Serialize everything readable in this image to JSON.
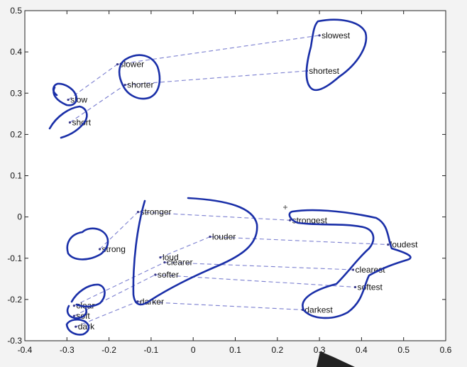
{
  "chart_data": {
    "type": "scatter",
    "title": "",
    "xlabel": "",
    "ylabel": "",
    "xlim": [
      -0.4,
      0.6
    ],
    "ylim": [
      -0.3,
      0.5
    ],
    "grid": false,
    "x_ticks": [
      -0.4,
      -0.3,
      -0.2,
      -0.1,
      0,
      0.1,
      0.2,
      0.3,
      0.4,
      0.5,
      0.6
    ],
    "x_tick_labels": [
      "-0.4",
      "-0.3",
      "-0.2",
      "-0.1",
      "0",
      "0.1",
      "0.2",
      "0.3",
      "0.4",
      "0.5",
      "0.6"
    ],
    "y_ticks": [
      -0.3,
      -0.2,
      -0.1,
      0,
      0.1,
      0.2,
      0.3,
      0.4,
      0.5
    ],
    "y_tick_labels": [
      "-0.3",
      "-0.2",
      "-0.1",
      "0",
      "0.1",
      "0.2",
      "0.3",
      "0.4",
      "0.5"
    ],
    "points": [
      {
        "label": "slow",
        "x": -0.297,
        "y": 0.284
      },
      {
        "label": "short",
        "x": -0.293,
        "y": 0.229
      },
      {
        "label": "slower",
        "x": -0.18,
        "y": 0.37
      },
      {
        "label": "shorter",
        "x": -0.162,
        "y": 0.32
      },
      {
        "label": "slowest",
        "x": 0.3,
        "y": 0.44
      },
      {
        "label": "shortest",
        "x": 0.27,
        "y": 0.354
      },
      {
        "label": "strong",
        "x": -0.222,
        "y": -0.078
      },
      {
        "label": "stronger",
        "x": -0.131,
        "y": 0.012
      },
      {
        "label": "strongest",
        "x": 0.23,
        "y": -0.008
      },
      {
        "label": "louder",
        "x": 0.04,
        "y": -0.048
      },
      {
        "label": "loudest",
        "x": 0.463,
        "y": -0.067
      },
      {
        "label": "loud",
        "x": -0.078,
        "y": -0.098
      },
      {
        "label": "clearer",
        "x": -0.068,
        "y": -0.11
      },
      {
        "label": "clearest",
        "x": 0.38,
        "y": -0.128
      },
      {
        "label": "softer",
        "x": -0.09,
        "y": -0.14
      },
      {
        "label": "softest",
        "x": 0.385,
        "y": -0.17
      },
      {
        "label": "clear",
        "x": -0.283,
        "y": -0.215
      },
      {
        "label": "darker",
        "x": -0.132,
        "y": -0.205
      },
      {
        "label": "darkest",
        "x": 0.26,
        "y": -0.225
      },
      {
        "label": "soft",
        "x": -0.283,
        "y": -0.24
      },
      {
        "label": "dark",
        "x": -0.279,
        "y": -0.266
      }
    ],
    "links": [
      [
        "slow",
        "slower"
      ],
      [
        "slower",
        "slowest"
      ],
      [
        "short",
        "shorter"
      ],
      [
        "shorter",
        "shortest"
      ],
      [
        "strong",
        "stronger"
      ],
      [
        "stronger",
        "strongest"
      ],
      [
        "loud",
        "louder"
      ],
      [
        "louder",
        "loudest"
      ],
      [
        "clear",
        "clearer"
      ],
      [
        "clearer",
        "clearest"
      ],
      [
        "soft",
        "softer"
      ],
      [
        "softer",
        "softest"
      ],
      [
        "dark",
        "darker"
      ],
      [
        "darker",
        "darkest"
      ]
    ],
    "colors": {
      "link": "#7b7fd0",
      "point": "#3a3a8a",
      "annotation": "#1a2fa8"
    }
  }
}
